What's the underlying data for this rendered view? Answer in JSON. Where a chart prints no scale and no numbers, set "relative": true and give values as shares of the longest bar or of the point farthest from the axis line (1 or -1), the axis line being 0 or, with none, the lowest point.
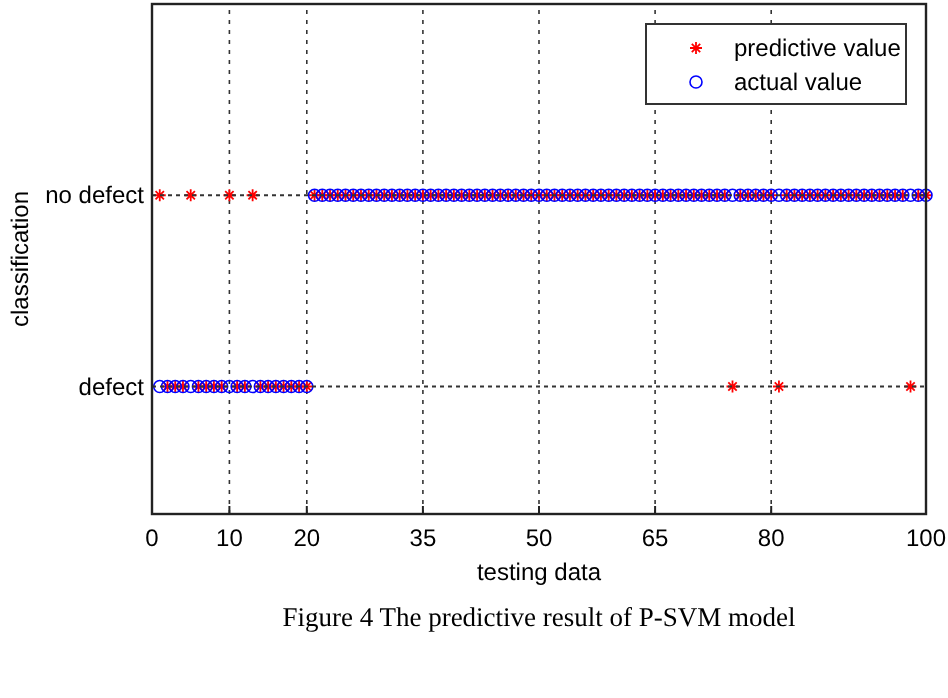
{
  "chart_data": {
    "type": "scatter",
    "xlabel": "testing data",
    "ylabel": "classification",
    "relative": true,
    "annotations": [
      "Figure 4 The predictive result of P-SVM model"
    ],
    "x": [
      1,
      2,
      3,
      4,
      5,
      6,
      7,
      8,
      9,
      10,
      11,
      12,
      13,
      14,
      15,
      16,
      17,
      18,
      19,
      20,
      21,
      22,
      23,
      24,
      25,
      26,
      27,
      28,
      29,
      30,
      31,
      32,
      33,
      34,
      35,
      36,
      37,
      38,
      39,
      40,
      41,
      42,
      43,
      44,
      45,
      46,
      47,
      48,
      49,
      50,
      51,
      52,
      53,
      54,
      55,
      56,
      57,
      58,
      59,
      60,
      61,
      62,
      63,
      64,
      65,
      66,
      67,
      68,
      69,
      70,
      71,
      72,
      73,
      74,
      75,
      76,
      77,
      78,
      79,
      80,
      81,
      82,
      83,
      84,
      85,
      86,
      87,
      88,
      89,
      90,
      91,
      92,
      93,
      94,
      95,
      96,
      97,
      98,
      99,
      100
    ],
    "series": [
      {
        "name": "predictive value",
        "color": "#ff0000",
        "marker": "cross",
        "values": [
          1,
          0.4,
          0.4,
          0.4,
          1,
          0.4,
          0.4,
          0.4,
          0.4,
          1,
          0.4,
          0.4,
          1,
          0.4,
          0.4,
          0.4,
          0.4,
          0.4,
          0.4,
          0.4,
          1,
          1,
          1,
          1,
          1,
          1,
          1,
          1,
          1,
          1,
          1,
          1,
          1,
          1,
          1,
          1,
          1,
          1,
          1,
          1,
          1,
          1,
          1,
          1,
          1,
          1,
          1,
          1,
          1,
          1,
          1,
          1,
          1,
          1,
          1,
          1,
          1,
          1,
          1,
          1,
          1,
          1,
          1,
          1,
          1,
          1,
          1,
          1,
          1,
          1,
          1,
          1,
          1,
          1,
          0.4,
          1,
          1,
          1,
          1,
          1,
          0.4,
          1,
          1,
          1,
          1,
          1,
          1,
          1,
          1,
          1,
          1,
          1,
          1,
          1,
          1,
          1,
          1,
          0.4,
          1,
          1
        ]
      },
      {
        "name": "actual value",
        "color": "#0000ff",
        "marker": "circle",
        "values": [
          0.4,
          0.4,
          0.4,
          0.4,
          0.4,
          0.4,
          0.4,
          0.4,
          0.4,
          0.4,
          0.4,
          0.4,
          0.4,
          0.4,
          0.4,
          0.4,
          0.4,
          0.4,
          0.4,
          0.4,
          1,
          1,
          1,
          1,
          1,
          1,
          1,
          1,
          1,
          1,
          1,
          1,
          1,
          1,
          1,
          1,
          1,
          1,
          1,
          1,
          1,
          1,
          1,
          1,
          1,
          1,
          1,
          1,
          1,
          1,
          1,
          1,
          1,
          1,
          1,
          1,
          1,
          1,
          1,
          1,
          1,
          1,
          1,
          1,
          1,
          1,
          1,
          1,
          1,
          1,
          1,
          1,
          1,
          1,
          1,
          1,
          1,
          1,
          1,
          1,
          1,
          1,
          1,
          1,
          1,
          1,
          1,
          1,
          1,
          1,
          1,
          1,
          1,
          1,
          1,
          1,
          1,
          1,
          1,
          1
        ]
      }
    ],
    "xlim": [
      0,
      100
    ],
    "xticks": [
      0,
      10,
      20,
      35,
      50,
      65,
      80,
      100
    ],
    "ref_lines": [
      {
        "axis": "y",
        "value": 0.4,
        "label": "defect",
        "line_style": "dotted"
      },
      {
        "axis": "y",
        "value": 1,
        "label": "no defect",
        "line_style": "dotted"
      }
    ],
    "grid": "x",
    "legend": "top right"
  }
}
